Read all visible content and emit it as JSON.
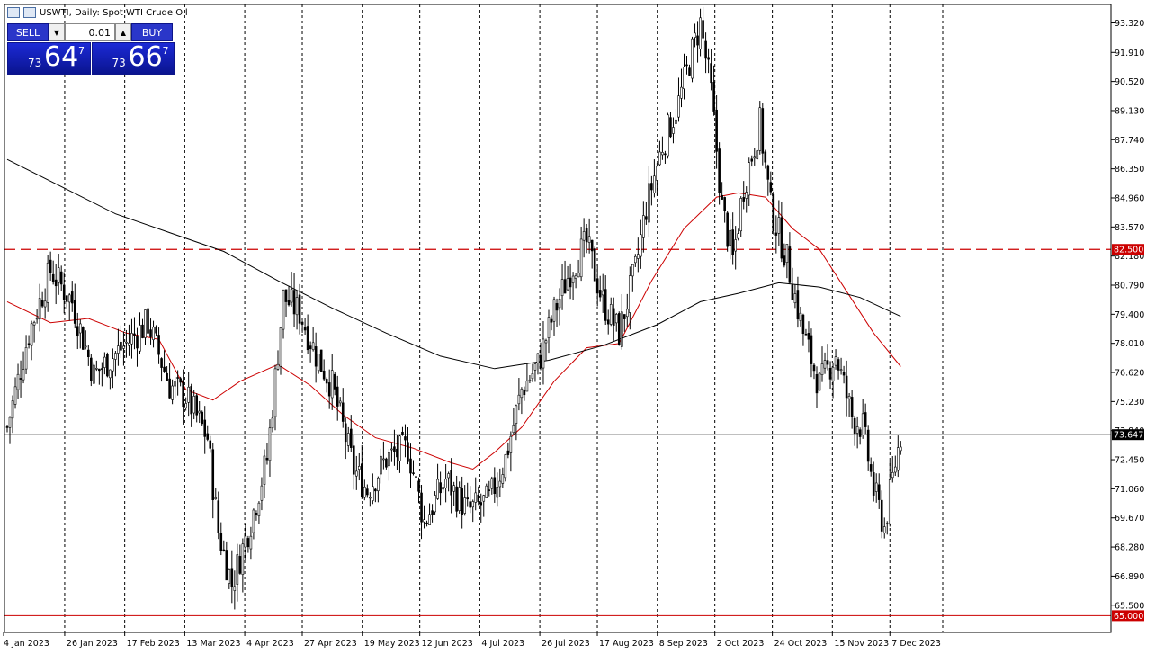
{
  "header": {
    "symbol_title": "USWTI, Daily:  Spot WTI Crude Oil"
  },
  "trade_panel": {
    "sell_label": "SELL",
    "buy_label": "BUY",
    "lot_value": "0.01",
    "sell_price": {
      "prefix": "73",
      "big": "64",
      "sup": "7"
    },
    "buy_price": {
      "prefix": "73",
      "big": "66",
      "sup": "7"
    }
  },
  "colors": {
    "candle": "#000000",
    "ma_fast": "#cc0000",
    "ma_slow": "#000000",
    "resistance": "#cc0000",
    "support": "#cc0000",
    "current_price_line": "#000000",
    "price_label_bg": "#000000",
    "level_label_bg": "#cc0000"
  },
  "chart_data": {
    "type": "candlestick",
    "ylim": [
      64.2,
      94.2
    ],
    "grid": "vertical-dashed",
    "y_ticks": [
      "93.320",
      "91.910",
      "90.520",
      "89.130",
      "87.740",
      "86.350",
      "84.960",
      "83.570",
      "82.180",
      "80.790",
      "79.400",
      "78.010",
      "76.620",
      "75.230",
      "73.840",
      "72.450",
      "71.060",
      "69.670",
      "68.280",
      "66.890",
      "65.500"
    ],
    "x_labels": [
      "4 Jan 2023",
      "26 Jan 2023",
      "17 Feb 2023",
      "13 Mar 2023",
      "4 Apr 2023",
      "27 Apr 2023",
      "19 May 2023",
      "12 Jun 2023",
      "4 Jul 2023",
      "26 Jul 2023",
      "17 Aug 2023",
      "8 Sep 2023",
      "2 Oct 2023",
      "24 Oct 2023",
      "15 Nov 2023",
      "7 Dec 2023"
    ],
    "levels": {
      "resistance": {
        "value": 82.5,
        "label": "82.500",
        "style": "dashed"
      },
      "support": {
        "value": 65.0,
        "label": "65.000",
        "style": "solid"
      },
      "current": {
        "value": 73.647,
        "label": "73.647"
      }
    },
    "close_path": [
      [
        0,
        74.0
      ],
      [
        8,
        78.5
      ],
      [
        16,
        81.5
      ],
      [
        24,
        80.0
      ],
      [
        32,
        76.5
      ],
      [
        40,
        77.5
      ],
      [
        52,
        79.0
      ],
      [
        60,
        76.0
      ],
      [
        66,
        75.5
      ],
      [
        74,
        73.5
      ],
      [
        78,
        69.0
      ],
      [
        83,
        66.5
      ],
      [
        90,
        69.5
      ],
      [
        96,
        72.5
      ],
      [
        102,
        80.2
      ],
      [
        108,
        79.5
      ],
      [
        114,
        77.5
      ],
      [
        120,
        76.0
      ],
      [
        128,
        72.0
      ],
      [
        133,
        71.0
      ],
      [
        140,
        72.5
      ],
      [
        148,
        73.0
      ],
      [
        154,
        69.5
      ],
      [
        162,
        71.5
      ],
      [
        170,
        70.0
      ],
      [
        178,
        70.5
      ],
      [
        184,
        72.5
      ],
      [
        190,
        75.8
      ],
      [
        196,
        77.0
      ],
      [
        202,
        79.5
      ],
      [
        208,
        81.5
      ],
      [
        214,
        82.8
      ],
      [
        220,
        80.0
      ],
      [
        226,
        78.5
      ],
      [
        232,
        81.5
      ],
      [
        236,
        84.5
      ],
      [
        242,
        87.5
      ],
      [
        248,
        89.5
      ],
      [
        252,
        91.5
      ],
      [
        256,
        93.3
      ],
      [
        260,
        90.0
      ],
      [
        264,
        84.5
      ],
      [
        268,
        82.0
      ],
      [
        272,
        85.5
      ],
      [
        278,
        88.5
      ],
      [
        282,
        84.5
      ],
      [
        288,
        82.0
      ],
      [
        294,
        78.5
      ],
      [
        300,
        76.0
      ],
      [
        306,
        77.5
      ],
      [
        312,
        74.5
      ],
      [
        316,
        74.0
      ],
      [
        320,
        71.0
      ],
      [
        324,
        69.2
      ],
      [
        328,
        72.3
      ],
      [
        330,
        73.6
      ]
    ],
    "moving_averages": [
      {
        "name": "ma_fast",
        "points": [
          [
            0,
            80.0
          ],
          [
            16,
            79.0
          ],
          [
            30,
            79.2
          ],
          [
            44,
            78.5
          ],
          [
            56,
            78.2
          ],
          [
            66,
            75.8
          ],
          [
            76,
            75.3
          ],
          [
            86,
            76.2
          ],
          [
            100,
            77.0
          ],
          [
            112,
            76.0
          ],
          [
            124,
            74.6
          ],
          [
            136,
            73.5
          ],
          [
            150,
            73.0
          ],
          [
            164,
            72.3
          ],
          [
            172,
            72.0
          ],
          [
            180,
            72.8
          ],
          [
            190,
            74.0
          ],
          [
            202,
            76.2
          ],
          [
            214,
            77.8
          ],
          [
            226,
            78.0
          ],
          [
            238,
            81.0
          ],
          [
            250,
            83.5
          ],
          [
            262,
            85.0
          ],
          [
            270,
            85.2
          ],
          [
            280,
            85.0
          ],
          [
            290,
            83.5
          ],
          [
            300,
            82.5
          ],
          [
            310,
            80.5
          ],
          [
            320,
            78.5
          ],
          [
            330,
            76.9
          ]
        ]
      },
      {
        "name": "ma_slow",
        "points": [
          [
            0,
            86.8
          ],
          [
            20,
            85.5
          ],
          [
            40,
            84.2
          ],
          [
            60,
            83.3
          ],
          [
            80,
            82.4
          ],
          [
            100,
            81.0
          ],
          [
            120,
            79.7
          ],
          [
            140,
            78.5
          ],
          [
            160,
            77.4
          ],
          [
            180,
            76.8
          ],
          [
            200,
            77.2
          ],
          [
            220,
            77.9
          ],
          [
            240,
            78.9
          ],
          [
            256,
            80.0
          ],
          [
            270,
            80.4
          ],
          [
            285,
            80.9
          ],
          [
            300,
            80.7
          ],
          [
            315,
            80.2
          ],
          [
            330,
            79.3
          ]
        ]
      }
    ]
  }
}
